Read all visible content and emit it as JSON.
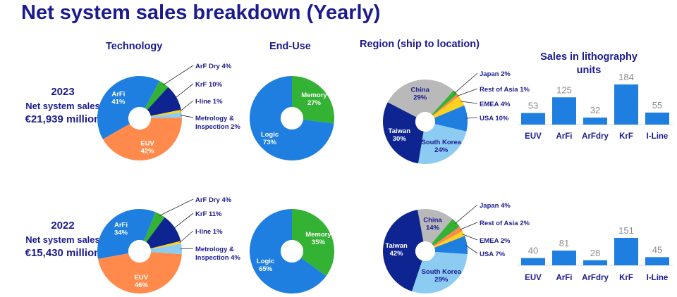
{
  "title": "Net system sales breakdown (Yearly)",
  "headers": {
    "technology": "Technology",
    "end_use": "End-Use",
    "region": "Region (ship to location)",
    "litho_line1": "Sales in lithography",
    "litho_line2": "units"
  },
  "years": [
    {
      "year": "2023",
      "label": "Net system sales",
      "amount": "€21,939 million"
    },
    {
      "year": "2022",
      "label": "Net system sales",
      "amount": "€15,430 million"
    }
  ],
  "colors": {
    "title": "#1b1b8f",
    "blue": "#1e7fe0",
    "orange": "#ff8a4c",
    "green": "#33b233",
    "navy": "#0d2491",
    "yellow": "#ffd21f",
    "light_blue": "#8ccbf2",
    "gray": "#b9b9b9"
  },
  "chart_data": [
    {
      "type": "pie",
      "group": "2023 Technology",
      "slices": [
        {
          "label": "ArF Dry 4%",
          "value": 4,
          "color": "#33b233"
        },
        {
          "label": "KrF 10%",
          "value": 10,
          "color": "#0d2491"
        },
        {
          "label": "I-line 1%",
          "value": 1,
          "color": "#ffd21f"
        },
        {
          "label": "Metrology & Inspection 2%",
          "value": 2,
          "color": "#8ccbf2"
        },
        {
          "label": "EUV 42%",
          "value": 42,
          "color": "#ff8a4c"
        },
        {
          "label": "ArFi 41%",
          "value": 41,
          "color": "#1e7fe0"
        }
      ]
    },
    {
      "type": "pie",
      "group": "2023 End-Use",
      "slices": [
        {
          "label": "Memory 27%",
          "value": 27,
          "color": "#33b233"
        },
        {
          "label": "Logic 73%",
          "value": 73,
          "color": "#1e7fe0"
        }
      ]
    },
    {
      "type": "pie",
      "group": "2023 Region",
      "slices": [
        {
          "label": "Japan 2%",
          "value": 2,
          "color": "#33b233"
        },
        {
          "label": "Rest of Asia 1%",
          "value": 1,
          "color": "#ff8a4c"
        },
        {
          "label": "EMEA 4%",
          "value": 4,
          "color": "#ffd21f"
        },
        {
          "label": "USA 10%",
          "value": 10,
          "color": "#1e7fe0"
        },
        {
          "label": "South Korea 24%",
          "value": 24,
          "color": "#8ccbf2"
        },
        {
          "label": "Taiwan 30%",
          "value": 30,
          "color": "#0d2491"
        },
        {
          "label": "China 29%",
          "value": 29,
          "color": "#b9b9b9"
        }
      ]
    },
    {
      "type": "bar",
      "group": "2023 Sales in lithography units",
      "categories": [
        "EUV",
        "ArFi",
        "ArFdry",
        "KrF",
        "I-Line"
      ],
      "values": [
        53,
        125,
        32,
        184,
        55
      ]
    },
    {
      "type": "pie",
      "group": "2022 Technology",
      "slices": [
        {
          "label": "ArF Dry 4%",
          "value": 4,
          "color": "#33b233"
        },
        {
          "label": "KrF 11%",
          "value": 11,
          "color": "#0d2491"
        },
        {
          "label": "I-line 1%",
          "value": 1,
          "color": "#ffd21f"
        },
        {
          "label": "Metrology & Inspection 4%",
          "value": 4,
          "color": "#8ccbf2"
        },
        {
          "label": "EUV 46%",
          "value": 46,
          "color": "#ff8a4c"
        },
        {
          "label": "ArFi 34%",
          "value": 34,
          "color": "#1e7fe0"
        }
      ]
    },
    {
      "type": "pie",
      "group": "2022 End-Use",
      "slices": [
        {
          "label": "Memory 35%",
          "value": 35,
          "color": "#33b233"
        },
        {
          "label": "Logic 65%",
          "value": 65,
          "color": "#1e7fe0"
        }
      ]
    },
    {
      "type": "pie",
      "group": "2022 Region",
      "slices": [
        {
          "label": "Japan 4%",
          "value": 4,
          "color": "#33b233"
        },
        {
          "label": "Rest of Asia 2%",
          "value": 2,
          "color": "#ff8a4c"
        },
        {
          "label": "EMEA 2%",
          "value": 2,
          "color": "#ffd21f"
        },
        {
          "label": "USA 7%",
          "value": 7,
          "color": "#1e7fe0"
        },
        {
          "label": "South Korea 29%",
          "value": 29,
          "color": "#8ccbf2"
        },
        {
          "label": "Taiwan 42%",
          "value": 42,
          "color": "#0d2491"
        },
        {
          "label": "China 14%",
          "value": 14,
          "color": "#b9b9b9"
        }
      ]
    },
    {
      "type": "bar",
      "group": "2022 Sales in lithography units",
      "categories": [
        "EUV",
        "ArFi",
        "ArFdry",
        "KrF",
        "I-Line"
      ],
      "values": [
        40,
        81,
        28,
        151,
        45
      ]
    }
  ]
}
